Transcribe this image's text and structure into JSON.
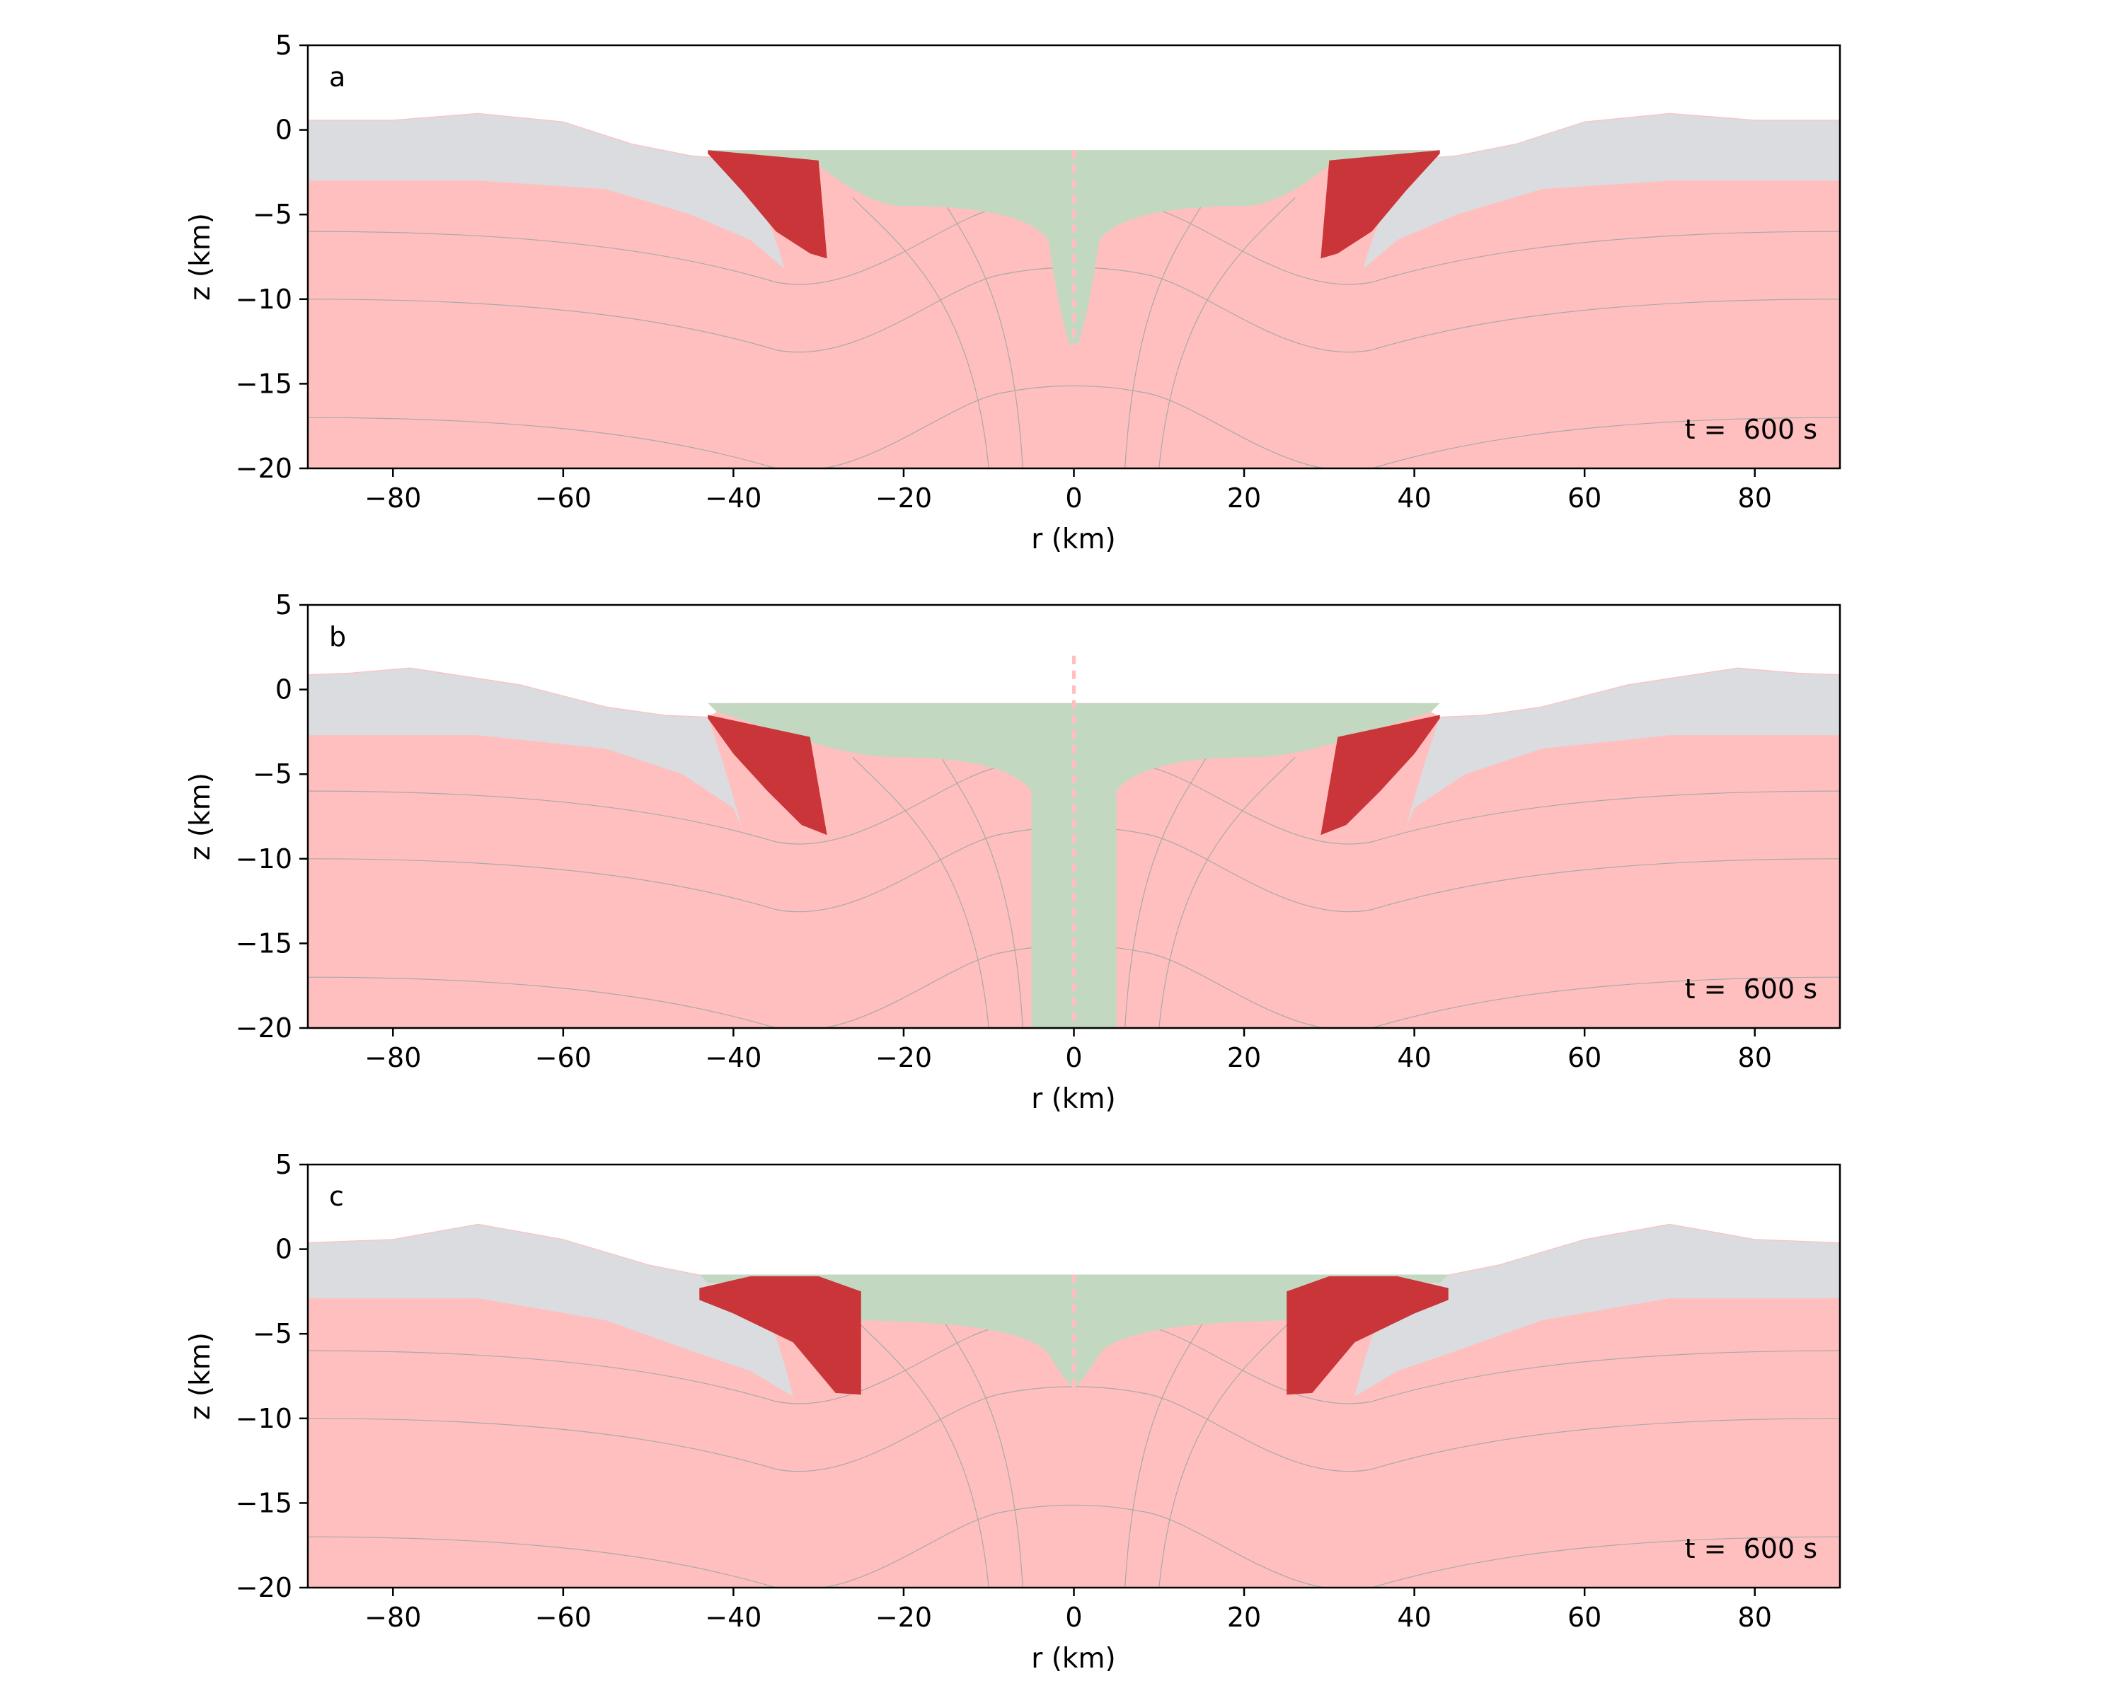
{
  "colors": {
    "background": "#ffffff",
    "host_rock": "#ffbfbf",
    "crater_fill": "#c2d8c0",
    "sediment_layer": "#dadce0",
    "impactor_melt": "#c93538",
    "contour": "#a9a9a9",
    "frame": "#000000"
  },
  "chart_data": [
    {
      "type": "heatmap",
      "panel": "a",
      "time_label": "t =  600 s",
      "xlabel": "r (km)",
      "ylabel": "z (km)",
      "xlim": [
        -90,
        90
      ],
      "ylim": [
        -20,
        5
      ],
      "xticks": [
        -80,
        -60,
        -40,
        -20,
        0,
        20,
        40,
        60,
        80
      ],
      "yticks": [
        5,
        0,
        -5,
        -10,
        -15,
        -20
      ],
      "xtick_labels": [
        "−80",
        "−60",
        "−40",
        "−20",
        "0",
        "20",
        "40",
        "60",
        "80"
      ],
      "ytick_labels": [
        "5",
        "0",
        "−5",
        "−10",
        "−15",
        "−20"
      ],
      "layers": {
        "sediment": {
          "outer_top": [
            [
              -90,
              0.6
            ],
            [
              -80,
              0.6
            ],
            [
              -70,
              1.0
            ],
            [
              -60,
              0.5
            ],
            [
              -52,
              -0.8
            ],
            [
              -45,
              -1.5
            ],
            [
              -40,
              -1.7
            ]
          ],
          "inner_lower": [
            [
              -90,
              -3.0
            ],
            [
              -70,
              -3.0
            ],
            [
              -55,
              -3.5
            ],
            [
              -45,
              -5.0
            ],
            [
              -38,
              -6.5
            ],
            [
              -34,
              -8.2
            ]
          ],
          "tip": [
            -34,
            -8.2
          ]
        },
        "melt_block": [
          [
            -43,
            -1.2
          ],
          [
            -30,
            -1.8
          ],
          [
            -29,
            -7.6
          ],
          [
            -31,
            -7.3
          ],
          [
            -35,
            -6.0
          ],
          [
            -39,
            -3.6
          ],
          [
            -43,
            -1.4
          ]
        ],
        "crater_fill": {
          "rim_r": 43,
          "floor_z": -1.2,
          "basin_depth": -4.5,
          "central_spike_depth": -13.0,
          "spike_half_width": 3.0
        },
        "contour_ridges": [
          -6,
          -10,
          -17
        ]
      }
    },
    {
      "type": "heatmap",
      "panel": "b",
      "time_label": "t =  600 s",
      "xlabel": "r (km)",
      "ylabel": "z (km)",
      "xlim": [
        -90,
        90
      ],
      "ylim": [
        -20,
        5
      ],
      "xticks": [
        -80,
        -60,
        -40,
        -20,
        0,
        20,
        40,
        60,
        80
      ],
      "yticks": [
        5,
        0,
        -5,
        -10,
        -15,
        -20
      ],
      "xtick_labels": [
        "−80",
        "−60",
        "−40",
        "−20",
        "0",
        "20",
        "40",
        "60",
        "80"
      ],
      "ytick_labels": [
        "5",
        "0",
        "−5",
        "−10",
        "−15",
        "−20"
      ],
      "layers": {
        "sediment": {
          "outer_top": [
            [
              -90,
              0.9
            ],
            [
              -85,
              1.0
            ],
            [
              -78,
              1.3
            ],
            [
              -65,
              0.3
            ],
            [
              -55,
              -1.0
            ],
            [
              -48,
              -1.5
            ],
            [
              -43,
              -1.6
            ]
          ],
          "inner_lower": [
            [
              -90,
              -2.7
            ],
            [
              -70,
              -2.7
            ],
            [
              -55,
              -3.5
            ],
            [
              -46,
              -5.0
            ],
            [
              -40,
              -7.0
            ],
            [
              -39,
              -8.2
            ]
          ],
          "tip": [
            -39,
            -8.2
          ]
        },
        "melt_block": [
          [
            -43,
            -1.5
          ],
          [
            -31,
            -2.8
          ],
          [
            -29,
            -8.6
          ],
          [
            -32,
            -8.0
          ],
          [
            -36,
            -6.0
          ],
          [
            -40,
            -3.8
          ],
          [
            -43,
            -1.7
          ]
        ],
        "crater_fill": {
          "rim_r": 43,
          "floor_z": -0.8,
          "basin_depth": -4.0,
          "central_spike_depth": -20.0,
          "spike_half_width": 5.0
        },
        "contour_ridges": [
          -6,
          -10,
          -17
        ]
      }
    },
    {
      "type": "heatmap",
      "panel": "c",
      "time_label": "t =  600 s",
      "xlabel": "r (km)",
      "ylabel": "z (km)",
      "xlim": [
        -90,
        90
      ],
      "ylim": [
        -20,
        5
      ],
      "xticks": [
        -80,
        -60,
        -40,
        -20,
        0,
        20,
        40,
        60,
        80
      ],
      "yticks": [
        5,
        0,
        -5,
        -10,
        -15,
        -20
      ],
      "xtick_labels": [
        "−80",
        "−60",
        "−40",
        "−20",
        "0",
        "20",
        "40",
        "60",
        "80"
      ],
      "ytick_labels": [
        "5",
        "0",
        "−5",
        "−10",
        "−15",
        "−20"
      ],
      "layers": {
        "sediment": {
          "outer_top": [
            [
              -90,
              0.4
            ],
            [
              -80,
              0.6
            ],
            [
              -70,
              1.5
            ],
            [
              -60,
              0.6
            ],
            [
              -50,
              -0.9
            ],
            [
              -44,
              -1.5
            ],
            [
              -38,
              -1.8
            ]
          ],
          "inner_lower": [
            [
              -90,
              -2.9
            ],
            [
              -70,
              -2.9
            ],
            [
              -55,
              -4.2
            ],
            [
              -45,
              -6.0
            ],
            [
              -38,
              -7.2
            ],
            [
              -33,
              -8.7
            ]
          ],
          "tip": [
            -33,
            -8.7
          ]
        },
        "melt_block": [
          [
            -44,
            -2.3
          ],
          [
            -38,
            -1.6
          ],
          [
            -30,
            -1.6
          ],
          [
            -25,
            -2.5
          ],
          [
            -25,
            -8.6
          ],
          [
            -28,
            -8.5
          ],
          [
            -33,
            -5.5
          ],
          [
            -40,
            -3.8
          ],
          [
            -44,
            -3.0
          ]
        ],
        "crater_fill": {
          "rim_r": 44,
          "floor_z": -1.5,
          "basin_depth": -4.2,
          "central_spike_depth": -8.2,
          "spike_half_width": 3.0
        },
        "contour_ridges": [
          -6,
          -10,
          -17
        ]
      }
    }
  ]
}
